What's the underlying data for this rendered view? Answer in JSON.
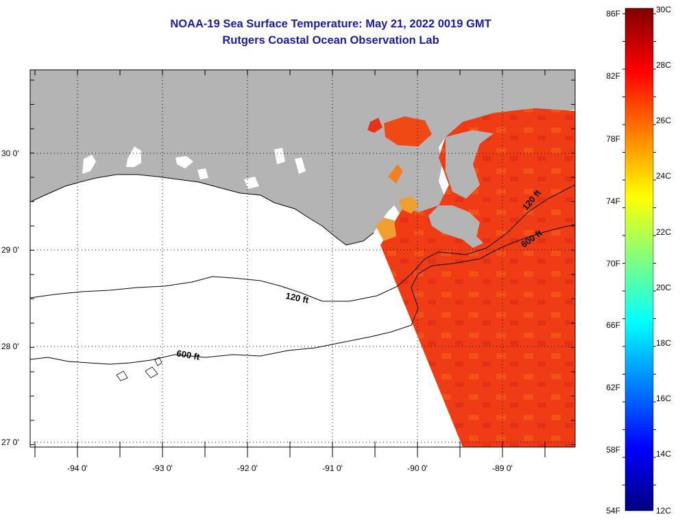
{
  "header": {
    "title": "NOAA-19 Sea Surface Temperature:  May 21, 2022 0019 GMT",
    "subtitle": "Rutgers Coastal Ocean Observation Lab"
  },
  "map": {
    "lon_labels": [
      "-94 0'",
      "-93 0'",
      "-92 0'",
      "-91 0'",
      "-90 0'",
      "-89 0'"
    ],
    "lat_labels": [
      "30 0'",
      "29 0'",
      "28 0'",
      "27 0'"
    ],
    "contours": [
      "120 ft",
      "600 ft",
      "120 ft",
      "600 ft"
    ],
    "colors": {
      "land": "#b4b4b4",
      "ocean_nodata": "#ffffff",
      "sst_warm": "#f03c14"
    }
  },
  "colorbar": {
    "fahrenheit": [
      "86F",
      "82F",
      "78F",
      "74F",
      "70F",
      "66F",
      "62F",
      "58F",
      "54F"
    ],
    "celsius": [
      "30C",
      "28C",
      "26C",
      "24C",
      "22C",
      "20C",
      "18C",
      "16C",
      "14C",
      "12C"
    ],
    "stops": [
      "#000080",
      "#0000ff",
      "#0080ff",
      "#00ffff",
      "#80ff80",
      "#ffff00",
      "#ff8000",
      "#ff0000",
      "#800000"
    ]
  }
}
